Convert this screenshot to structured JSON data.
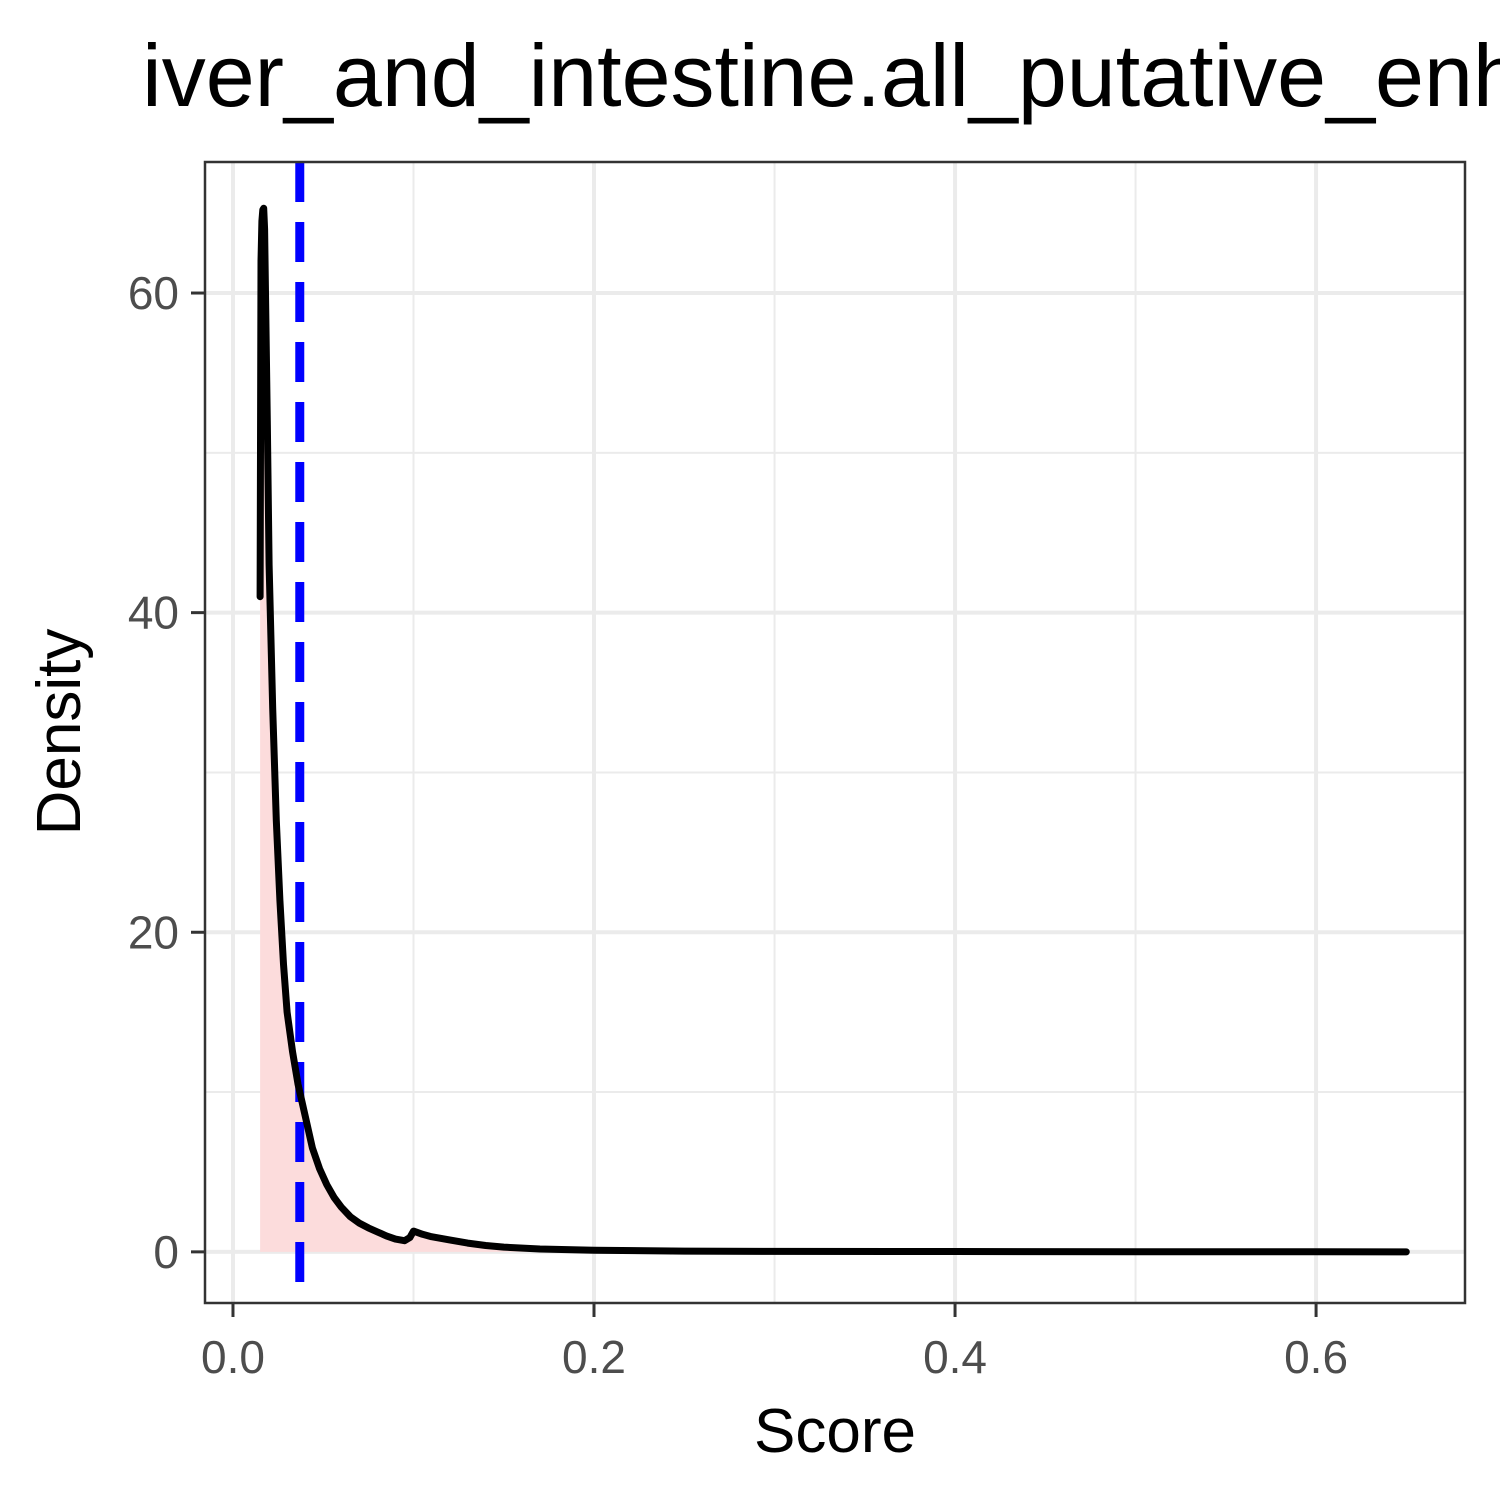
{
  "chart_data": {
    "type": "area",
    "title": "iver_and_intestine.all_putative_enh",
    "xlabel": "Score",
    "ylabel": "Density",
    "xlim": [
      -0.0155,
      0.6825
    ],
    "ylim": [
      -3.2,
      68.2
    ],
    "x_ticks": [
      0.0,
      0.2,
      0.4,
      0.6
    ],
    "x_tick_labels": [
      "0.0",
      "0.2",
      "0.4",
      "0.6"
    ],
    "y_ticks": [
      0,
      20,
      40,
      60
    ],
    "y_tick_labels": [
      "0",
      "20",
      "40",
      "60"
    ],
    "x_minor_ticks": [
      0.1,
      0.3,
      0.5
    ],
    "y_minor_ticks": [
      10,
      30,
      50
    ],
    "grid": true,
    "threshold_x": 0.037,
    "colors": {
      "line": "#000000",
      "fill": "#fcdcdc",
      "threshold": "#0000ff",
      "tick_text": "#4d4d4d"
    },
    "series": [
      {
        "x": [
          0.015,
          0.0155,
          0.016,
          0.0165,
          0.017,
          0.0175,
          0.018,
          0.019,
          0.02,
          0.022,
          0.024,
          0.026,
          0.028,
          0.03,
          0.033,
          0.036,
          0.04,
          0.044,
          0.048,
          0.052,
          0.056,
          0.06,
          0.065,
          0.07,
          0.075,
          0.08,
          0.085,
          0.09,
          0.095,
          0.098,
          0.1,
          0.105,
          0.11,
          0.12,
          0.13,
          0.14,
          0.15,
          0.17,
          0.2,
          0.25,
          0.3,
          0.4,
          0.5,
          0.6,
          0.65
        ],
        "y": [
          41,
          62,
          64.5,
          65.2,
          65.3,
          64,
          60,
          52,
          43,
          34,
          27,
          22,
          18,
          15,
          12.5,
          10.5,
          8.5,
          6.5,
          5.2,
          4.2,
          3.4,
          2.8,
          2.2,
          1.8,
          1.5,
          1.25,
          1.0,
          0.8,
          0.7,
          0.9,
          1.3,
          1.1,
          0.95,
          0.75,
          0.55,
          0.4,
          0.3,
          0.18,
          0.1,
          0.05,
          0.03,
          0.02,
          0.01,
          0.005,
          0.0
        ]
      }
    ]
  }
}
